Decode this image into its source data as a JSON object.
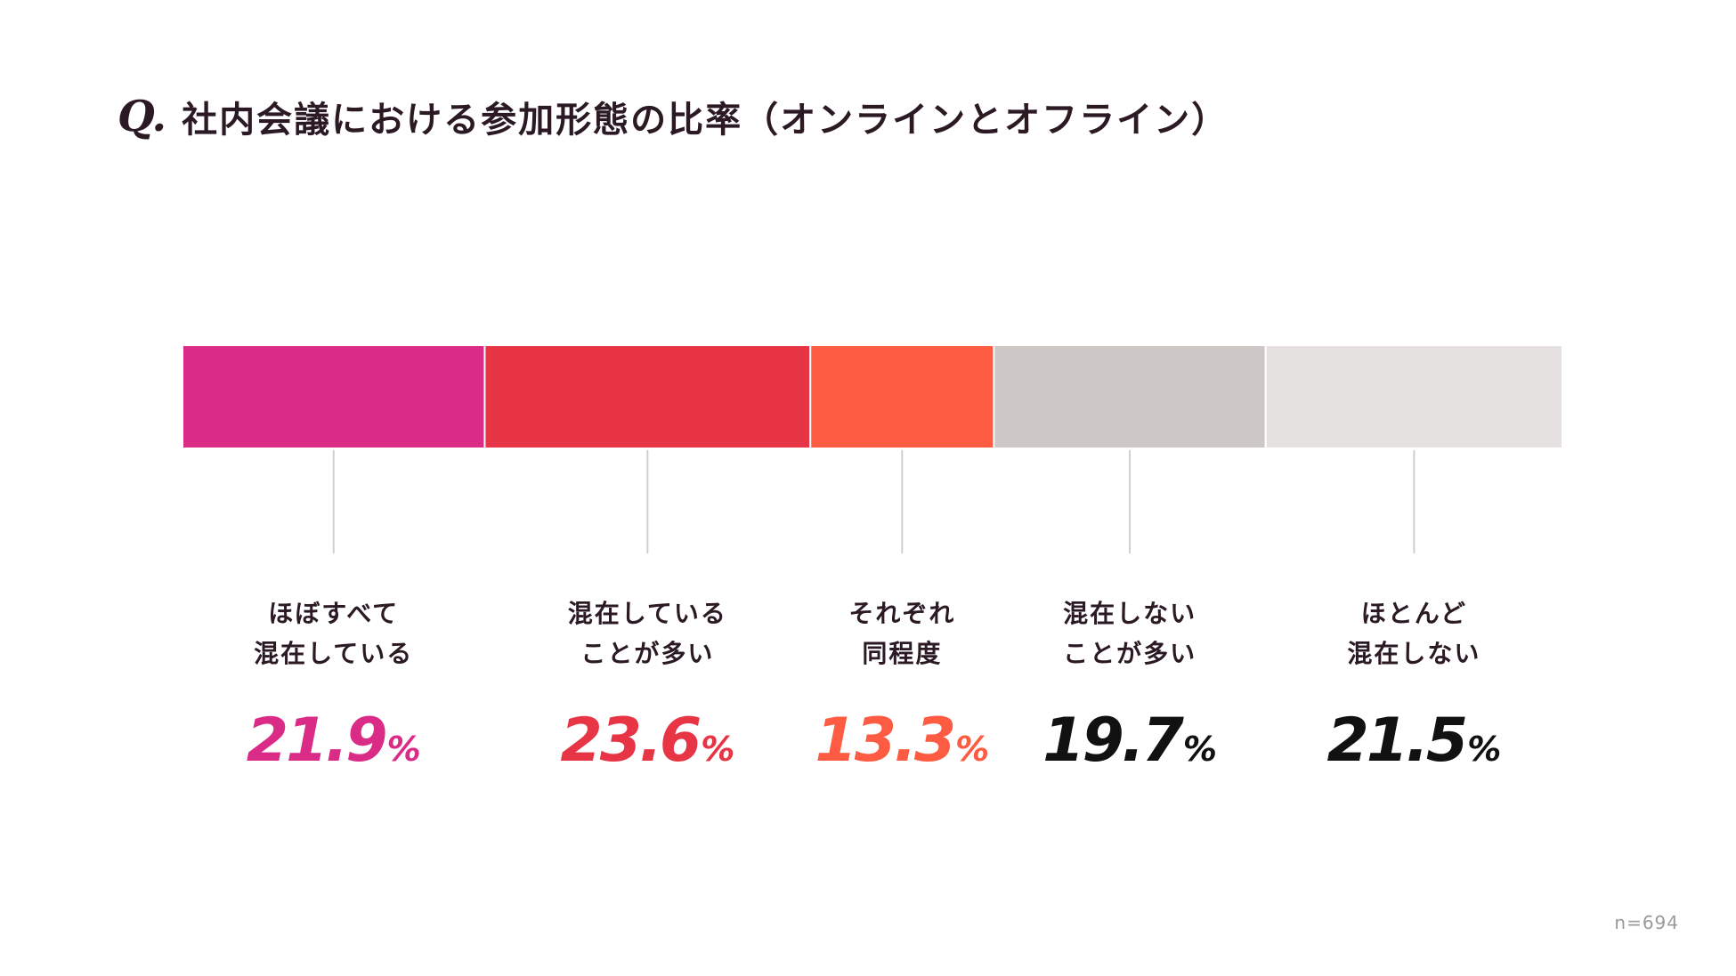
{
  "chart_data": {
    "type": "bar",
    "orientation": "horizontal-stacked-100",
    "title_prefix": "Q.",
    "title": "社内会議における参加形態の比率（オンラインとオフライン）",
    "categories": [
      [
        "ほぼすべて",
        "混在している"
      ],
      [
        "混在している",
        "ことが多い"
      ],
      [
        "それぞれ",
        "同程度"
      ],
      [
        "混在しない",
        "ことが多い"
      ],
      [
        "ほとんど",
        "混在しない"
      ]
    ],
    "values": [
      21.9,
      23.6,
      13.3,
      19.7,
      21.5
    ],
    "value_suffix": "%",
    "colors": [
      "#da2b87",
      "#e83545",
      "#fd5b42",
      "#cdc7c6",
      "#e5e1e0"
    ],
    "label_colors": [
      "#da2b87",
      "#e83545",
      "#fd5b42",
      "#111111",
      "#111111"
    ],
    "leader_color": "#cfcfcf",
    "xlim": [
      0,
      100
    ],
    "sample_size_label": "n=694"
  }
}
